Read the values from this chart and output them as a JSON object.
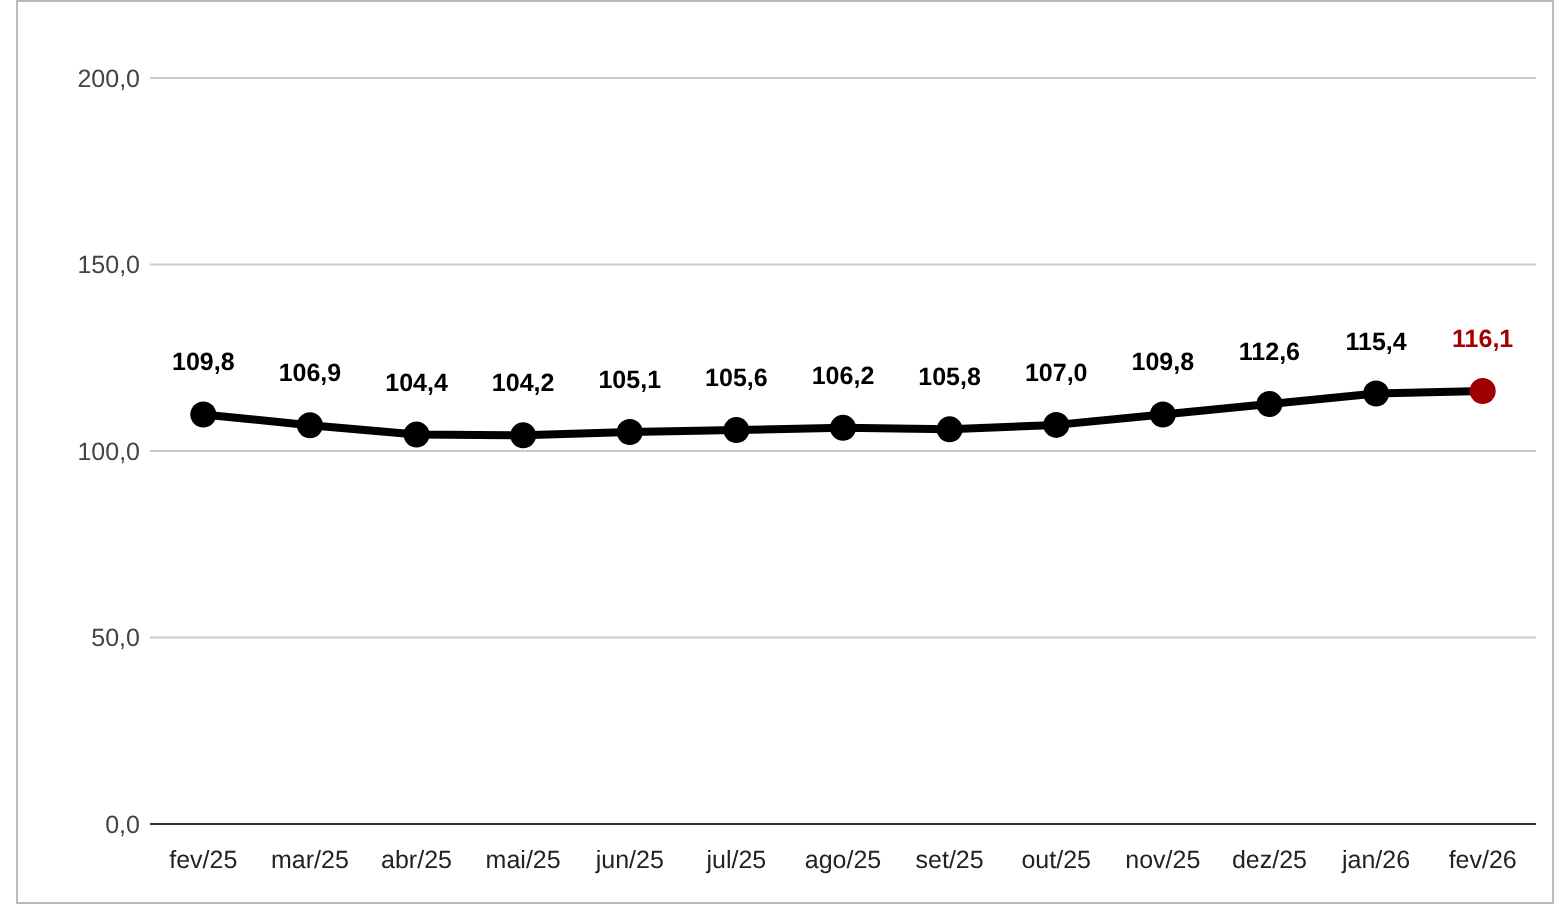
{
  "chart_data": {
    "type": "line",
    "categories": [
      "fev/25",
      "mar/25",
      "abr/25",
      "mai/25",
      "jun/25",
      "jul/25",
      "ago/25",
      "set/25",
      "out/25",
      "nov/25",
      "dez/25",
      "jan/26",
      "fev/26"
    ],
    "series": [
      {
        "color": "#000000",
        "colors": [
          "#000000",
          "#000000",
          "#000000",
          "#000000",
          "#000000",
          "#000000",
          "#000000",
          "#000000",
          "#000000",
          "#000000",
          "#000000",
          "#000000",
          "#a00000"
        ],
        "values": [
          109.8,
          106.9,
          104.4,
          104.2,
          105.1,
          105.6,
          106.2,
          105.8,
          107.0,
          109.8,
          112.6,
          115.4,
          116.1
        ],
        "value_labels": [
          "109,8",
          "106,9",
          "104,4",
          "104,2",
          "105,1",
          "105,6",
          "106,2",
          "105,8",
          "107,0",
          "109,8",
          "112,6",
          "115,4",
          "116,1"
        ]
      }
    ],
    "ylim": [
      0,
      200
    ],
    "yticks": [
      {
        "value": 0,
        "label": "0,0"
      },
      {
        "value": 50,
        "label": "50,0"
      },
      {
        "value": 100,
        "label": "100,0"
      },
      {
        "value": 150,
        "label": "150,0"
      },
      {
        "value": 200,
        "label": "200,0"
      }
    ],
    "grid": "y",
    "marker": "circle",
    "line_style": "solid"
  }
}
